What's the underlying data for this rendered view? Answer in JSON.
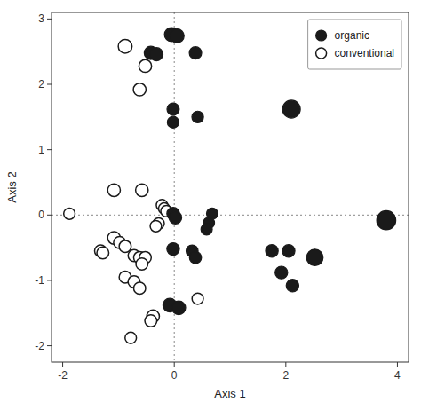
{
  "chart_data": {
    "type": "scatter",
    "xlabel": "Axis 1",
    "ylabel": "Axis 2",
    "xlim": [
      -2.2,
      4.2
    ],
    "ylim": [
      -2.25,
      3.1
    ],
    "xticks": [
      -2,
      0,
      2,
      4
    ],
    "yticks": [
      -2,
      -1,
      0,
      1,
      2,
      3
    ],
    "grid": false,
    "legend": "upper right",
    "crosshair": [
      0,
      0
    ],
    "series": [
      {
        "name": "organic",
        "color": "#1a1a1a",
        "marker": "circle",
        "x": [
          -0.05,
          0.05,
          -0.42,
          -0.32,
          0.38,
          -0.02,
          0.42,
          -0.02,
          2.1,
          -0.02,
          0.02,
          0.68,
          0.62,
          0.58,
          3.8,
          -0.02,
          0.32,
          0.38,
          1.75,
          2.05,
          2.52,
          1.92,
          2.12,
          -0.08,
          0.08
        ],
        "values": [
          2.76,
          2.74,
          2.48,
          2.46,
          2.48,
          1.62,
          1.5,
          1.42,
          1.62,
          0.02,
          -0.04,
          0.02,
          -0.12,
          -0.22,
          -0.08,
          -0.52,
          -0.55,
          -0.65,
          -0.55,
          -0.55,
          -0.65,
          -0.88,
          -1.08,
          -1.38,
          -1.42
        ],
        "sizes": [
          130,
          130,
          115,
          115,
          100,
          100,
          90,
          90,
          210,
          105,
          105,
          85,
          85,
          85,
          240,
          105,
          95,
          95,
          105,
          105,
          180,
          105,
          105,
          125,
          125
        ]
      },
      {
        "name": "conventional",
        "color": "#1a1a1a",
        "marker": "open-circle",
        "x": [
          -0.88,
          -0.52,
          -0.62,
          -1.88,
          -1.08,
          -0.58,
          -0.22,
          -0.18,
          -0.14,
          -0.28,
          -0.33,
          -1.08,
          -0.98,
          -0.88,
          -1.32,
          -1.28,
          -0.72,
          -0.62,
          -0.52,
          -0.58,
          -0.88,
          -0.72,
          -0.62,
          0.42,
          -0.38,
          -0.42,
          -0.78
        ],
        "values": [
          2.58,
          2.28,
          1.92,
          0.02,
          0.38,
          0.38,
          0.15,
          0.1,
          0.06,
          -0.13,
          -0.17,
          -0.35,
          -0.42,
          -0.48,
          -0.55,
          -0.58,
          -0.62,
          -0.65,
          -0.65,
          -0.75,
          -0.95,
          -1.02,
          -1.12,
          -1.28,
          -1.55,
          -1.62,
          -1.88
        ],
        "sizes": [
          125,
          105,
          105,
          85,
          105,
          105,
          85,
          85,
          85,
          85,
          85,
          105,
          95,
          95,
          95,
          95,
          95,
          95,
          95,
          95,
          95,
          95,
          95,
          85,
          105,
          95,
          85
        ]
      }
    ]
  }
}
